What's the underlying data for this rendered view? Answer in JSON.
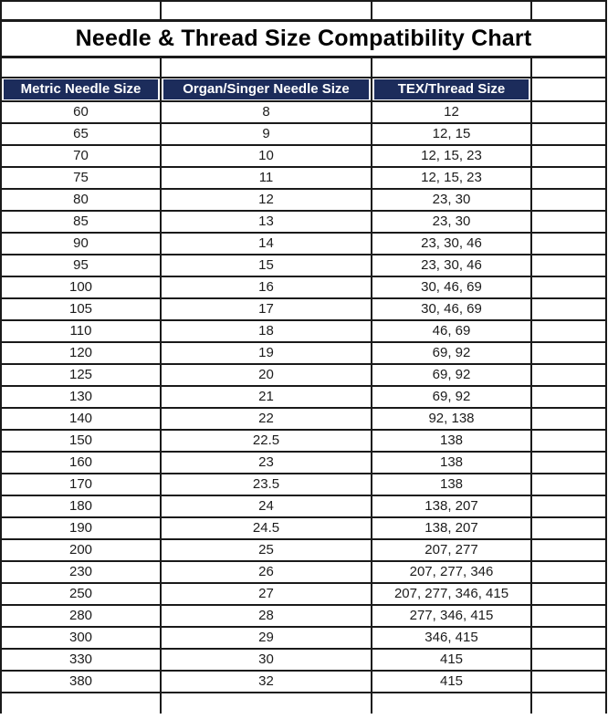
{
  "title": "Needle & Thread Size Compatibility Chart",
  "colors": {
    "header_bg": "#1c2c5b",
    "header_text": "#ffffff",
    "grid": "#1a1a1a",
    "text": "#1c1c1c",
    "background": "#ffffff"
  },
  "chart_data": {
    "type": "table",
    "title": "Needle & Thread Size Compatibility Chart",
    "columns": [
      "Metric Needle Size",
      "Organ/Singer Needle Size",
      "TEX/Thread Size"
    ],
    "rows": [
      [
        "60",
        "8",
        "12"
      ],
      [
        "65",
        "9",
        "12, 15"
      ],
      [
        "70",
        "10",
        "12, 15, 23"
      ],
      [
        "75",
        "11",
        "12, 15, 23"
      ],
      [
        "80",
        "12",
        "23, 30"
      ],
      [
        "85",
        "13",
        "23, 30"
      ],
      [
        "90",
        "14",
        "23, 30, 46"
      ],
      [
        "95",
        "15",
        "23, 30, 46"
      ],
      [
        "100",
        "16",
        "30, 46, 69"
      ],
      [
        "105",
        "17",
        "30, 46, 69"
      ],
      [
        "110",
        "18",
        "46, 69"
      ],
      [
        "120",
        "19",
        "69, 92"
      ],
      [
        "125",
        "20",
        "69, 92"
      ],
      [
        "130",
        "21",
        "69, 92"
      ],
      [
        "140",
        "22",
        "92, 138"
      ],
      [
        "150",
        "22.5",
        "138"
      ],
      [
        "160",
        "23",
        "138"
      ],
      [
        "170",
        "23.5",
        "138"
      ],
      [
        "180",
        "24",
        "138, 207"
      ],
      [
        "190",
        "24.5",
        "138, 207"
      ],
      [
        "200",
        "25",
        "207, 277"
      ],
      [
        "230",
        "26",
        "207, 277, 346"
      ],
      [
        "250",
        "27",
        "207, 277, 346, 415"
      ],
      [
        "280",
        "28",
        "277, 346, 415"
      ],
      [
        "300",
        "29",
        "346, 415"
      ],
      [
        "330",
        "30",
        "415"
      ],
      [
        "380",
        "32",
        "415"
      ]
    ],
    "layout": {
      "grid": true,
      "header_style": "navy-band",
      "empty_fourth_column": true
    }
  }
}
